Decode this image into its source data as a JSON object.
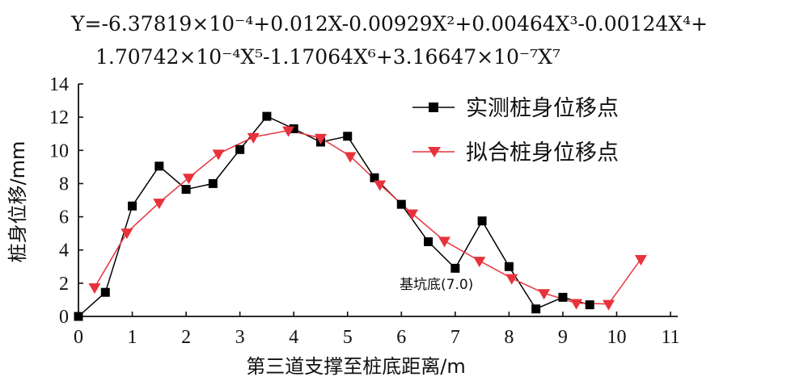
{
  "chart_data": {
    "type": "line",
    "equation": {
      "line1": "Y=-6.37819×10⁻⁴+0.012X-0.00929X²+0.00464X³-0.00124X⁴+",
      "line2": "1.70742×10⁻⁴X⁵-1.17064X⁶+3.16647×10⁻⁷X⁷"
    },
    "xlabel": "第三道支撑至桩底距离/m",
    "ylabel": "桩身位移/mm",
    "xlim": [
      0,
      11
    ],
    "ylim": [
      0,
      14
    ],
    "xticks": [
      0,
      1,
      2,
      3,
      4,
      5,
      6,
      7,
      8,
      9,
      10,
      11
    ],
    "yticks": [
      0,
      2,
      4,
      6,
      8,
      10,
      12,
      14
    ],
    "legend_position": "top-right",
    "annotation": {
      "text": "基坑底(7.0)",
      "x": 7.0,
      "y": 2.2
    },
    "series": [
      {
        "name": "实测桩身位移点",
        "color": "#000000",
        "marker": "square",
        "x": [
          0,
          0.5,
          1.0,
          1.5,
          2.0,
          2.5,
          3.0,
          3.5,
          4.0,
          4.5,
          5.0,
          5.5,
          6.0,
          6.5,
          7.0,
          7.5,
          8.0,
          8.5,
          9.0,
          9.5
        ],
        "y": [
          0.0,
          1.45,
          6.65,
          9.05,
          7.65,
          8.0,
          10.05,
          12.05,
          11.3,
          10.5,
          10.85,
          8.35,
          6.75,
          4.5,
          2.9,
          5.75,
          3.0,
          0.45,
          1.15,
          0.7
        ]
      },
      {
        "name": "拟合桩身位移点",
        "color": "#e8323c",
        "marker": "triangle-down",
        "x": [
          0.3,
          0.9,
          1.5,
          2.05,
          2.6,
          3.25,
          3.9,
          4.5,
          5.05,
          5.6,
          6.2,
          6.8,
          7.45,
          8.05,
          8.65,
          9.25,
          9.85,
          10.45
        ],
        "y": [
          1.75,
          5.05,
          6.85,
          8.35,
          9.8,
          10.8,
          11.2,
          10.75,
          9.65,
          7.95,
          6.2,
          4.55,
          3.35,
          2.3,
          1.4,
          0.8,
          0.75,
          3.45
        ]
      }
    ]
  }
}
